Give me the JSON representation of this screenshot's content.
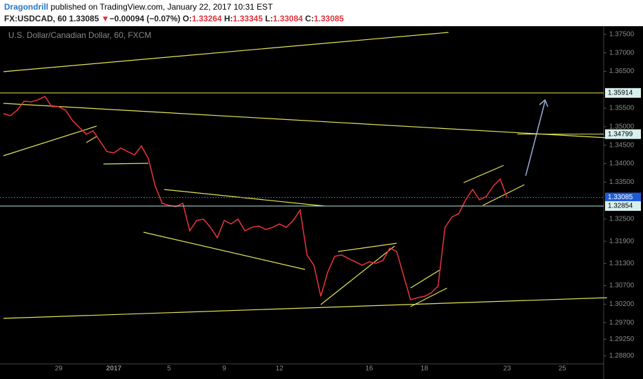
{
  "header": {
    "author": "Dragondrill",
    "published": "published on TradingView.com, January 22, 2017 10:31 EST",
    "symbol": "FX:USDCAD, 60",
    "last": "1.33085",
    "arrow": "▼",
    "change": "−0.00094 (−0.07%)",
    "o_label": "O:",
    "o": "1.33264",
    "h_label": "H:",
    "h": "1.33345",
    "l_label": "L:",
    "l": "1.33084",
    "c_label": "C:",
    "c": "1.33085"
  },
  "chart_data": {
    "type": "line",
    "watermark": "U.S. Dollar/Canadian Dollar, 60, FXCM",
    "categories": [
      null,
      null,
      null,
      null,
      null,
      null,
      null,
      null,
      "29",
      null,
      null,
      null,
      null,
      null,
      null,
      null,
      "2017",
      null,
      null,
      null,
      null,
      null,
      null,
      null,
      "5",
      null,
      null,
      null,
      null,
      null,
      null,
      null,
      "9",
      null,
      null,
      null,
      null,
      null,
      null,
      null,
      "12",
      null,
      null,
      null,
      null,
      null,
      null,
      null,
      null,
      null,
      null,
      null,
      null,
      "16",
      null,
      null,
      null,
      null,
      null,
      null,
      null,
      "18",
      null,
      null,
      null,
      null,
      null,
      null,
      null,
      null,
      null,
      null,
      null,
      "23",
      null,
      null,
      null,
      null,
      null,
      null,
      null,
      "25",
      null,
      null,
      null,
      null,
      null,
      null
    ],
    "series": [
      {
        "name": "USDCAD",
        "color": "#e0323a",
        "values": [
          1.35354,
          1.35299,
          1.35448,
          1.3569,
          1.35672,
          1.35728,
          1.35821,
          1.35541,
          1.35541,
          1.35448,
          1.35168,
          1.34981,
          1.34795,
          1.34888,
          1.34608,
          1.34328,
          1.34291,
          1.34422,
          1.34328,
          1.34235,
          1.34478,
          1.34142,
          1.33395,
          1.32929,
          1.32873,
          1.32836,
          1.32929,
          1.32183,
          1.32463,
          1.325,
          1.32276,
          1.31996,
          1.32463,
          1.32369,
          1.325,
          1.32183,
          1.32276,
          1.32313,
          1.3222,
          1.32276,
          1.32369,
          1.32276,
          1.32463,
          1.32743,
          1.3153,
          1.3125,
          1.3041,
          1.31063,
          1.31492,
          1.3153,
          1.31436,
          1.31343,
          1.3125,
          1.31343,
          1.31306,
          1.31381,
          1.31716,
          1.31623,
          1.3097,
          1.30317,
          1.30373,
          1.3041,
          1.30504,
          1.3069,
          1.32276,
          1.32556,
          1.32649,
          1.33022,
          1.33302,
          1.33022,
          1.33116,
          1.33395,
          1.33582,
          1.33085,
          null,
          null,
          null,
          null,
          null,
          null,
          null,
          null,
          null,
          null,
          null,
          null,
          null,
          null
        ]
      }
    ],
    "ylim": [
      1.2836,
      1.3772
    ],
    "yticks": [
      {
        "value": 1.375,
        "label": "1.37500"
      },
      {
        "value": 1.37,
        "label": "1.37000"
      },
      {
        "value": 1.365,
        "label": "1.36500"
      },
      {
        "value": 1.355,
        "label": "1.35500"
      },
      {
        "value": 1.35,
        "label": "1.35000"
      },
      {
        "value": 1.345,
        "label": "1.34500"
      },
      {
        "value": 1.34,
        "label": "1.34000"
      },
      {
        "value": 1.335,
        "label": "1.33500"
      },
      {
        "value": 1.325,
        "label": "1.32500"
      },
      {
        "value": 1.319,
        "label": "1.31900"
      },
      {
        "value": 1.313,
        "label": "1.31300"
      },
      {
        "value": 1.307,
        "label": "1.30700"
      },
      {
        "value": 1.302,
        "label": "1.30200"
      },
      {
        "value": 1.297,
        "label": "1.29700"
      },
      {
        "value": 1.2925,
        "label": "1.29250"
      },
      {
        "value": 1.288,
        "label": "1.28800"
      }
    ],
    "price_labels": [
      {
        "value": 1.35914,
        "color": "#d8f0ee",
        "text_color": "#000000",
        "line_style": "solid",
        "line_color": "#e6e65a"
      },
      {
        "value": 1.34799,
        "color": "#d8f0ee",
        "text_color": "#000000",
        "line_style": "short",
        "line_color": "#e6e65a"
      },
      {
        "value": 1.33085,
        "color": "#1e5bd8",
        "text_color": "#ffffff",
        "line_style": "dotted",
        "line_color": "#3a6fe0"
      },
      {
        "value": 1.32854,
        "color": "#d8f0ee",
        "text_color": "#000000",
        "line_style": "solid",
        "line_color": "#b8e8e0"
      }
    ],
    "grid": false
  }
}
